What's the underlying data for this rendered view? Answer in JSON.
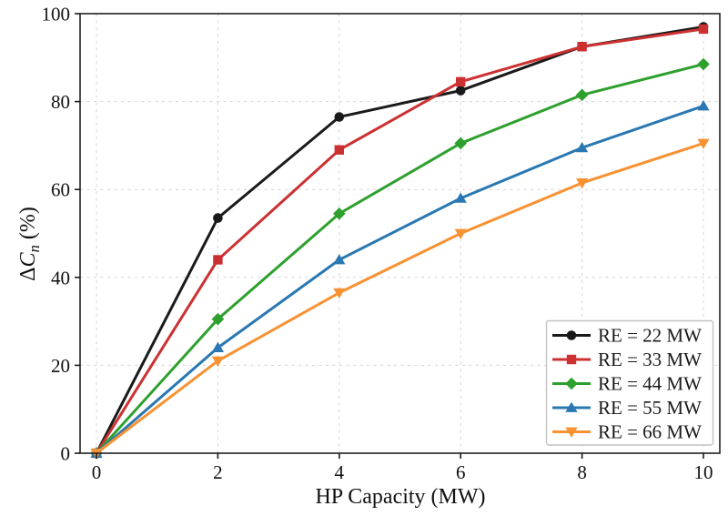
{
  "figure": {
    "ylabel_parts": {
      "delta": "Δ",
      "variable": "C",
      "subscript": "n",
      "unit": " (%)"
    }
  },
  "chart_data": {
    "type": "line",
    "title": "",
    "xlabel": "HP Capacity (MW)",
    "ylabel": "ΔC_n (%)",
    "x": [
      0,
      2,
      4,
      6,
      8,
      10
    ],
    "xticks": [
      0,
      2,
      4,
      6,
      8,
      10
    ],
    "yticks": [
      0,
      20,
      40,
      60,
      80,
      100
    ],
    "xlim": [
      0,
      10
    ],
    "ylim": [
      0,
      100
    ],
    "grid": true,
    "grid_style": "dashed",
    "legend_position": "lower right",
    "series": [
      {
        "name": "RE = 22 MW",
        "color": "#1a1a1a",
        "marker": "circle",
        "values": [
          0,
          53.5,
          76.5,
          82.5,
          92.5,
          97
        ]
      },
      {
        "name": "RE = 33 MW",
        "color": "#cc3132",
        "marker": "square",
        "values": [
          0,
          44,
          69,
          84.5,
          92.5,
          96.5
        ]
      },
      {
        "name": "RE = 44 MW",
        "color": "#2ea02e",
        "marker": "diamond",
        "values": [
          0,
          30.5,
          54.5,
          70.5,
          81.5,
          88.5
        ]
      },
      {
        "name": "RE = 55 MW",
        "color": "#2a78b2",
        "marker": "triangle-up",
        "values": [
          0,
          24,
          44,
          58,
          69.5,
          79
        ]
      },
      {
        "name": "RE = 66 MW",
        "color": "#f79233",
        "marker": "triangle-down",
        "values": [
          0,
          21,
          36.5,
          50,
          61.5,
          70.5
        ]
      }
    ]
  },
  "style": {
    "background": "#ffffff",
    "grid_color": "#d4d4d4",
    "spine_color": "#2e2e2e",
    "tick_color": "#1a1a1a",
    "text_color": "#111111",
    "legend_border": "#c4c4c4",
    "legend_bg": "#ffffff"
  }
}
